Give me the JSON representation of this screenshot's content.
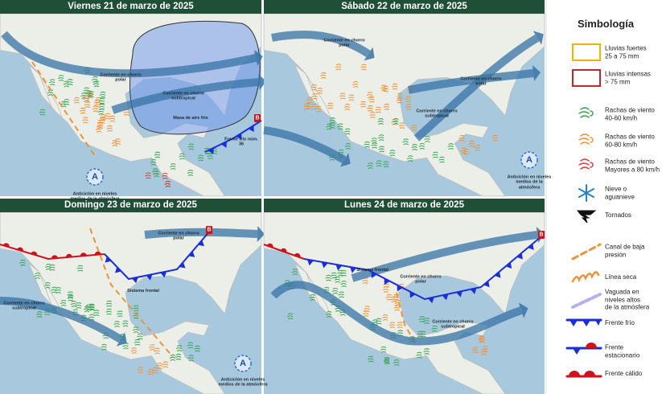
{
  "panels": [
    {
      "title": "Viernes 21 de marzo de 2025",
      "labels": [
        "Corriente en chorro polar",
        "Corriente en chorro subtropical",
        "Masa de aire frío",
        "Frente frío núm. 36",
        "Anticiclón en niveles medios de la atmósfera",
        "A",
        "B"
      ]
    },
    {
      "title": "Sábado 22 de marzo de 2025",
      "labels": [
        "Corriente en chorro polar",
        "Corriente en chorro polar",
        "Corriente en chorro subtropical",
        "Anticiclón en niveles medios de la atmósfera",
        "A"
      ]
    },
    {
      "title": "Domingo 23 de marzo de 2025",
      "labels": [
        "Corriente en chorro polar",
        "Sistema frontal",
        "Corriente en chorro subtropical",
        "Anticiclón en niveles medios de la atmósfera",
        "A",
        "B"
      ]
    },
    {
      "title": "Lunes 24 de marzo de 2025",
      "labels": [
        "Sistema frontal",
        "Corriente en chorro polar",
        "Corriente en chorro subtropical",
        "B"
      ]
    }
  ],
  "legend": {
    "title": "Simbología",
    "items": [
      "Lluvias fuertes\n25 a 75 mm",
      "Lluvias intensas\n> 75 mm",
      "Rachas de viento\n40-60 km/h",
      "Rachas de viento\n60-80 km/h",
      "Rachas de viento\nMayores a 80 km/h",
      "Nieve o\naguanieve",
      "Tornados",
      "Canal de baja\npresión",
      "Línea seca",
      "Vaguada en\nniveles altos\nde la atmósfera",
      "Frente frío",
      "Frente\nestacionario",
      "Frente cálido"
    ]
  }
}
